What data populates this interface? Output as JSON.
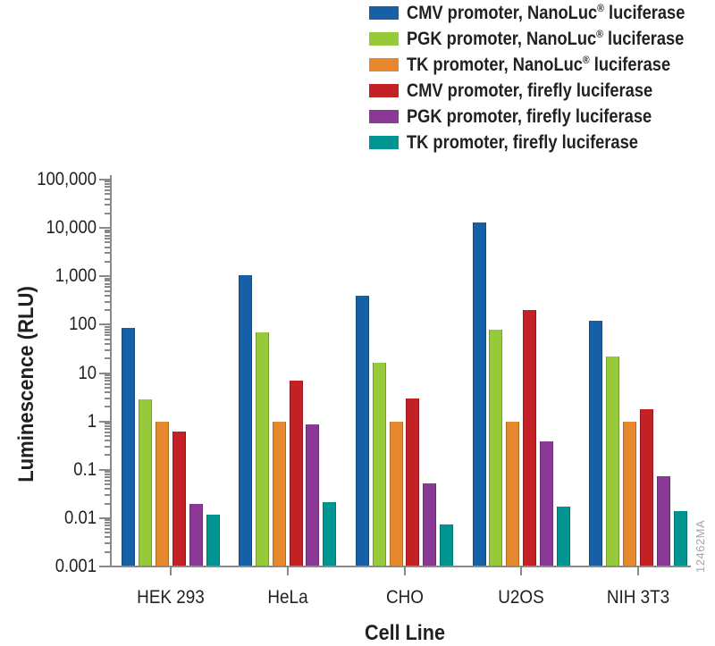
{
  "chart_data": {
    "type": "bar",
    "title": "",
    "xlabel": "Cell Line",
    "ylabel": "Luminescence (RLU)",
    "y_scale": "log",
    "ylim": [
      0.001,
      100000
    ],
    "ytick_labels": [
      "100,000",
      "10,000",
      "1,000",
      "100",
      "10",
      "1",
      "0.1",
      "0.01",
      "0.001"
    ],
    "categories": [
      "HEK 293",
      "HeLa",
      "CHO",
      "U2OS",
      "NIH 3T3"
    ],
    "series": [
      {
        "name": "CMV promoter, NanoLuc® luciferase",
        "name_pre": "CMV promoter, NanoLuc",
        "name_sup": "®",
        "name_post": " luciferase",
        "color": "#1660a8",
        "values": [
          85,
          1050,
          400,
          13000,
          120
        ]
      },
      {
        "name": "PGK promoter, NanoLuc® luciferase",
        "name_pre": "PGK promoter, NanoLuc",
        "name_sup": "®",
        "name_post": " luciferase",
        "color": "#97ca3b",
        "values": [
          2.9,
          70,
          16,
          80,
          22
        ]
      },
      {
        "name": "TK promoter, NanoLuc® luciferase",
        "name_pre": "TK promoter, NanoLuc",
        "name_sup": "®",
        "name_post": " luciferase",
        "color": "#e6882d",
        "values": [
          1.0,
          1.0,
          1.0,
          1.0,
          1.0
        ]
      },
      {
        "name": "CMV promoter, firefly luciferase",
        "name_pre": "CMV promoter, firefly luciferase",
        "name_sup": "",
        "name_post": "",
        "color": "#c42127",
        "values": [
          0.62,
          7,
          3,
          205,
          1.75
        ]
      },
      {
        "name": "PGK promoter, firefly luciferase",
        "name_pre": "PGK promoter, firefly luciferase",
        "name_sup": "",
        "name_post": "",
        "color": "#8a3a94",
        "values": [
          0.02,
          0.85,
          0.052,
          0.38,
          0.074
        ]
      },
      {
        "name": "TK promoter, firefly luciferase",
        "name_pre": "TK promoter, firefly luciferase",
        "name_sup": "",
        "name_post": "",
        "color": "#009590",
        "values": [
          0.012,
          0.021,
          0.0075,
          0.017,
          0.014
        ]
      }
    ],
    "legend_position": "top-right",
    "grid": false,
    "axis_color": "#8a8a8a",
    "text_color": "#231f20",
    "watermark": "12462MA"
  }
}
